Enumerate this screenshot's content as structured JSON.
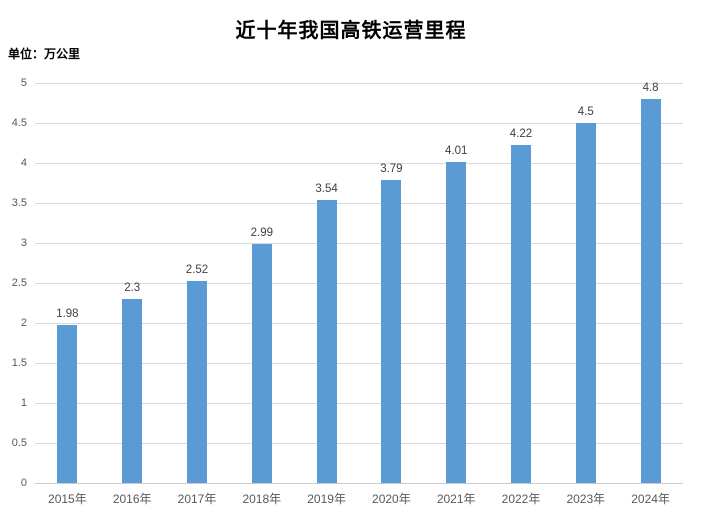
{
  "chart_data": {
    "type": "bar",
    "title": "近十年我国高铁运营里程",
    "unit_label": "单位：万公里",
    "categories": [
      "2015年",
      "2016年",
      "2017年",
      "2018年",
      "2019年",
      "2020年",
      "2021年",
      "2022年",
      "2023年",
      "2024年"
    ],
    "values": [
      1.98,
      2.3,
      2.52,
      2.99,
      3.54,
      3.79,
      4.01,
      4.22,
      4.5,
      4.8
    ],
    "value_labels": [
      "1.98",
      "2.3",
      "2.52",
      "2.99",
      "3.54",
      "3.79",
      "4.01",
      "4.22",
      "4.5",
      "4.8"
    ],
    "xlabel": "",
    "ylabel": "",
    "ylim": [
      0,
      5
    ],
    "ytick_step": 0.5,
    "yticks": [
      "0",
      "0.5",
      "1",
      "1.5",
      "2",
      "2.5",
      "3",
      "3.5",
      "4",
      "4.5",
      "5"
    ],
    "grid": true,
    "legend": "none",
    "colors": {
      "bar": "#5B9BD5",
      "gridline": "#D9D9D9",
      "axis_line": "#C9C9C9",
      "value_label": "#404040",
      "tick_label": "#595959",
      "title": "#000000"
    }
  }
}
